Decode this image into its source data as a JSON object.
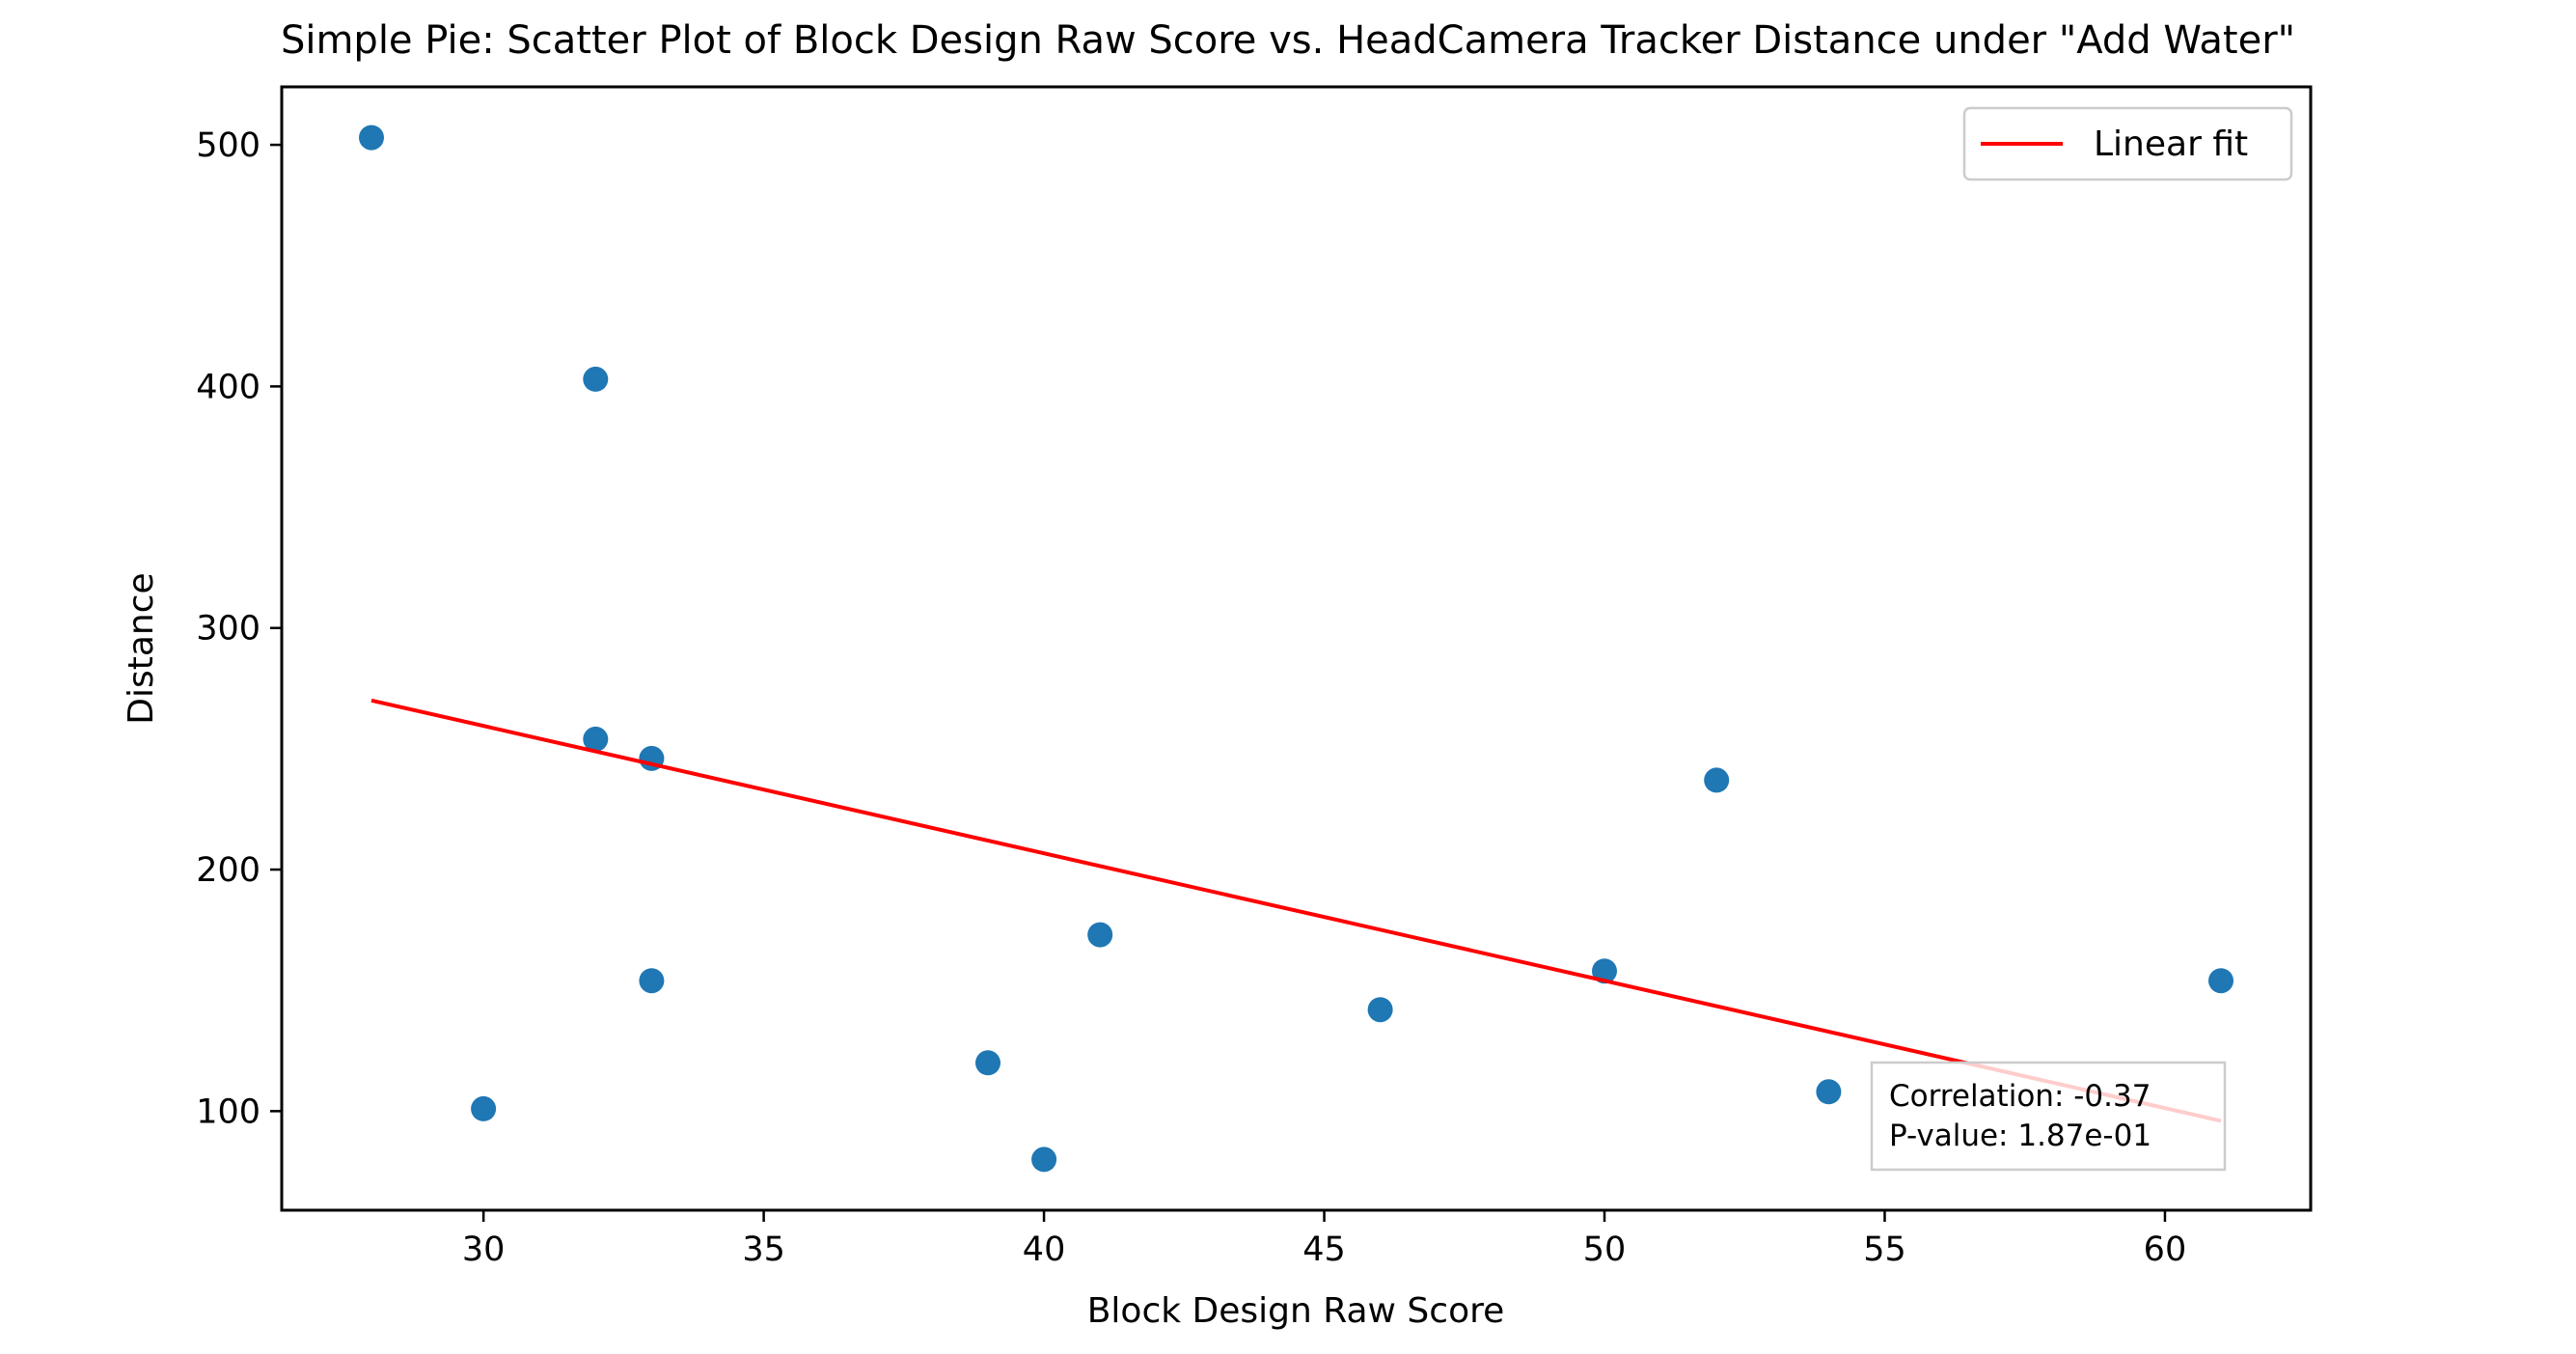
{
  "chart_data": {
    "type": "scatter",
    "title": "Simple Pie: Scatter Plot of Block Design Raw Score vs. HeadCamera Tracker Distance under \"Add Water\"",
    "xlabel": "Block Design Raw Score",
    "ylabel": "Distance",
    "xlim": [
      26.4,
      62.6
    ],
    "ylim": [
      59,
      524
    ],
    "xticks": [
      30,
      35,
      40,
      45,
      50,
      55,
      60
    ],
    "yticks": [
      100,
      200,
      300,
      400,
      500
    ],
    "grid": false,
    "points": [
      {
        "x": 28,
        "y": 503
      },
      {
        "x": 30,
        "y": 101
      },
      {
        "x": 32,
        "y": 403
      },
      {
        "x": 32,
        "y": 254
      },
      {
        "x": 33,
        "y": 246
      },
      {
        "x": 33,
        "y": 154
      },
      {
        "x": 39,
        "y": 120
      },
      {
        "x": 40,
        "y": 80
      },
      {
        "x": 41,
        "y": 173
      },
      {
        "x": 46,
        "y": 142
      },
      {
        "x": 50,
        "y": 158
      },
      {
        "x": 52,
        "y": 237
      },
      {
        "x": 54,
        "y": 108
      },
      {
        "x": 61,
        "y": 154
      }
    ],
    "fit_line": {
      "name": "Linear fit",
      "x": [
        28,
        61
      ],
      "y": [
        270,
        96
      ]
    },
    "legend": {
      "position": "upper right",
      "entries": [
        "Linear fit"
      ]
    },
    "annotation": {
      "position": "lower right",
      "lines": [
        "Correlation: -0.37",
        "P-value: 1.87e-01"
      ]
    },
    "colors": {
      "points": "#1f77b4",
      "fit_line": "#ff0000",
      "axes": "#000000"
    }
  }
}
